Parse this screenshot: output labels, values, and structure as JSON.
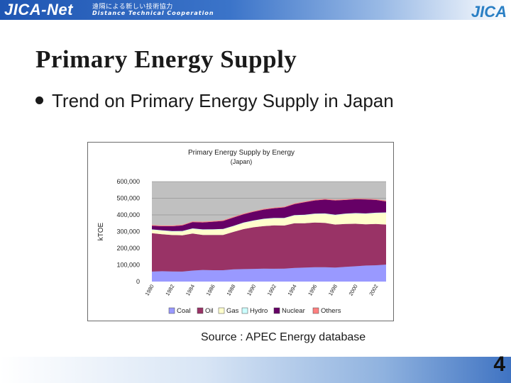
{
  "header": {
    "logo": "JICA-Net",
    "logo_jp": "遠隔による新しい技術協力",
    "logo_sub": "Distance Technical Cooperation",
    "brand": "JICA"
  },
  "slide": {
    "title": "Primary Energy Supply",
    "bullet": "Trend on Primary Energy Supply in Japan",
    "source": "Source : APEC Energy database",
    "page_number": "4"
  },
  "colors": {
    "Coal": "#9999ff",
    "Oil": "#993366",
    "Gas": "#ffffcc",
    "Hydro": "#ccffff",
    "Nuclear": "#660066",
    "Others": "#ff8080",
    "plot_bg": "#c0c0c0"
  },
  "chart_data": {
    "type": "area",
    "stacked": true,
    "title": "Primary Energy Supply by Energy",
    "subtitle": "(Japan)",
    "ylabel": "kTOE",
    "xlabel": "",
    "ylim": [
      0,
      600000
    ],
    "yticks": [
      0,
      100000,
      200000,
      300000,
      400000,
      500000,
      600000
    ],
    "ytick_labels": [
      "0",
      "100,000",
      "200,000",
      "300,000",
      "400,000",
      "500,000",
      "600,000"
    ],
    "xtick_labels": [
      "1980",
      "1982",
      "1984",
      "1986",
      "1988",
      "1990",
      "1992",
      "1994",
      "1996",
      "1998",
      "2000",
      "2002"
    ],
    "x": [
      1980,
      1981,
      1982,
      1983,
      1984,
      1985,
      1986,
      1987,
      1988,
      1989,
      1990,
      1991,
      1992,
      1993,
      1994,
      1995,
      1996,
      1997,
      1998,
      1999,
      2000,
      2001,
      2002,
      2003
    ],
    "legend_position": "bottom",
    "grid": true,
    "series": [
      {
        "name": "Coal",
        "values": [
          60000,
          62000,
          61000,
          60000,
          66000,
          70000,
          68000,
          68000,
          73000,
          75000,
          76000,
          78000,
          77000,
          78000,
          82000,
          84000,
          86000,
          86000,
          84000,
          88000,
          92000,
          96000,
          98000,
          102000
        ]
      },
      {
        "name": "Oil",
        "values": [
          230000,
          222000,
          218000,
          218000,
          222000,
          210000,
          212000,
          212000,
          225000,
          240000,
          250000,
          255000,
          260000,
          258000,
          268000,
          266000,
          268000,
          266000,
          258000,
          258000,
          255000,
          248000,
          248000,
          240000
        ]
      },
      {
        "name": "Gas",
        "values": [
          20000,
          21000,
          21000,
          23000,
          28000,
          30000,
          31000,
          33000,
          33000,
          36000,
          38000,
          41000,
          42000,
          43000,
          46000,
          48000,
          51000,
          54000,
          56000,
          59000,
          61000,
          62000,
          64000,
          70000
        ]
      },
      {
        "name": "Hydro",
        "values": [
          3000,
          3000,
          3000,
          3000,
          3000,
          3000,
          3000,
          3000,
          3000,
          3000,
          3000,
          3000,
          3000,
          3000,
          3000,
          3000,
          3000,
          3000,
          3000,
          3000,
          3000,
          3000,
          3000,
          3000
        ]
      },
      {
        "name": "Nuclear",
        "values": [
          22000,
          24000,
          29000,
          33000,
          38000,
          42000,
          45000,
          48000,
          50000,
          50000,
          52000,
          55000,
          58000,
          63000,
          66000,
          75000,
          79000,
          83000,
          86000,
          82000,
          83000,
          84000,
          77000,
          66000
        ]
      },
      {
        "name": "Others",
        "values": [
          4000,
          4000,
          4000,
          4000,
          4000,
          4000,
          4000,
          4000,
          4000,
          4000,
          4000,
          4000,
          4000,
          4000,
          4000,
          4000,
          4000,
          4000,
          4000,
          4000,
          4000,
          4000,
          4000,
          4000
        ]
      }
    ]
  }
}
